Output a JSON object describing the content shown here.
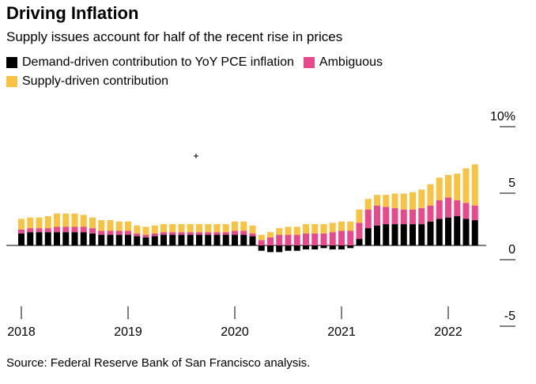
{
  "chart_data": {
    "type": "bar",
    "stacked": true,
    "title": "Driving Inflation",
    "subtitle": "Supply issues account for half of the recent rise in prices",
    "source": "Source: Federal Reserve Bank of San Francisco analysis.",
    "legend_position": "top-left",
    "y_ticks": [
      "10%",
      "5",
      "0",
      "-5"
    ],
    "y_tick_values": [
      10,
      5,
      0,
      -5
    ],
    "ylim": [
      -5,
      10
    ],
    "x_tick_labels": [
      "2018",
      "2019",
      "2020",
      "2021",
      "2022"
    ],
    "x": [
      "2018-01",
      "2018-02",
      "2018-03",
      "2018-04",
      "2018-05",
      "2018-06",
      "2018-07",
      "2018-08",
      "2018-09",
      "2018-10",
      "2018-11",
      "2018-12",
      "2019-01",
      "2019-02",
      "2019-03",
      "2019-04",
      "2019-05",
      "2019-06",
      "2019-07",
      "2019-08",
      "2019-09",
      "2019-10",
      "2019-11",
      "2019-12",
      "2020-01",
      "2020-02",
      "2020-03",
      "2020-04",
      "2020-05",
      "2020-06",
      "2020-07",
      "2020-08",
      "2020-09",
      "2020-10",
      "2020-11",
      "2020-12",
      "2021-01",
      "2021-02",
      "2021-03",
      "2021-04",
      "2021-05",
      "2021-06",
      "2021-07",
      "2021-08",
      "2021-09",
      "2021-10",
      "2021-11",
      "2021-12",
      "2022-01",
      "2022-02",
      "2022-03",
      "2022-04"
    ],
    "series": [
      {
        "name": "Demand-driven contribution to YoY PCE inflation",
        "color": "#000000",
        "values": [
          0.9,
          1.0,
          1.0,
          1.0,
          1.0,
          1.0,
          1.0,
          1.0,
          0.9,
          0.8,
          0.8,
          0.8,
          0.8,
          0.7,
          0.6,
          0.7,
          0.8,
          0.8,
          0.8,
          0.8,
          0.8,
          0.8,
          0.8,
          0.8,
          0.8,
          0.8,
          0.7,
          -0.4,
          -0.5,
          -0.5,
          -0.4,
          -0.4,
          -0.3,
          -0.3,
          -0.2,
          -0.3,
          -0.3,
          -0.2,
          0.5,
          1.3,
          1.5,
          1.6,
          1.6,
          1.6,
          1.6,
          1.6,
          1.8,
          2.0,
          2.1,
          2.2,
          2.0,
          1.9
        ]
      },
      {
        "name": "Ambiguous",
        "color": "#e8498a",
        "values": [
          0.3,
          0.3,
          0.3,
          0.3,
          0.4,
          0.4,
          0.4,
          0.4,
          0.4,
          0.3,
          0.3,
          0.3,
          0.3,
          0.2,
          0.2,
          0.2,
          0.2,
          0.2,
          0.2,
          0.2,
          0.2,
          0.2,
          0.2,
          0.2,
          0.3,
          0.3,
          0.2,
          0.4,
          0.6,
          0.8,
          0.8,
          0.8,
          0.9,
          0.9,
          0.9,
          1.0,
          1.1,
          1.1,
          1.2,
          1.4,
          1.5,
          1.3,
          1.2,
          1.1,
          1.1,
          1.2,
          1.2,
          1.4,
          1.5,
          1.2,
          1.2,
          1.1
        ]
      },
      {
        "name": "Supply-driven contribution",
        "color": "#f6c344",
        "values": [
          0.8,
          0.8,
          0.8,
          0.9,
          1.0,
          1.0,
          1.0,
          0.9,
          0.8,
          0.8,
          0.8,
          0.7,
          0.7,
          0.6,
          0.6,
          0.6,
          0.6,
          0.6,
          0.6,
          0.6,
          0.6,
          0.6,
          0.6,
          0.6,
          0.7,
          0.7,
          0.6,
          0.4,
          0.4,
          0.5,
          0.6,
          0.6,
          0.7,
          0.7,
          0.7,
          0.7,
          0.7,
          0.7,
          1.0,
          0.8,
          0.8,
          0.9,
          1.1,
          1.2,
          1.3,
          1.4,
          1.6,
          1.7,
          1.7,
          2.0,
          2.6,
          3.1
        ]
      }
    ]
  }
}
